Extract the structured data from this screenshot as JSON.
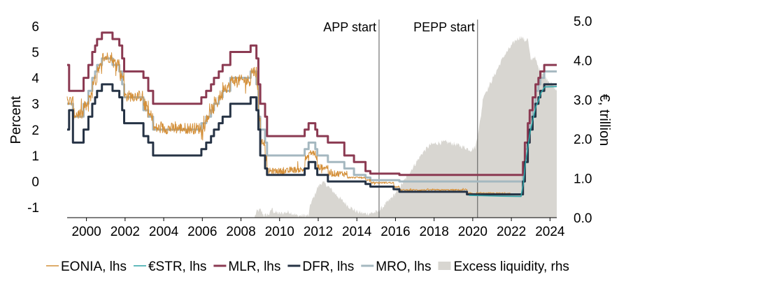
{
  "chart_data": {
    "type": "line",
    "title": "",
    "ylabel": "Percent",
    "y2label": "€, trillion",
    "xlim": [
      1999.0,
      2024.35
    ],
    "ylim": [
      -1.4,
      6.2
    ],
    "y2lim": [
      0.0,
      5.0
    ],
    "x_ticks": [
      "2000",
      "2002",
      "2004",
      "2006",
      "2008",
      "2010",
      "2012",
      "2014",
      "2016",
      "2018",
      "2020",
      "2022",
      "2024"
    ],
    "y_ticks": [
      "6",
      "5",
      "4",
      "3",
      "2",
      "1",
      "0",
      "-1"
    ],
    "y2_ticks": [
      "5.0",
      "4.0",
      "3.0",
      "2.0",
      "1.0",
      "0.0"
    ],
    "annotations": [
      {
        "label": "APP start",
        "x": 2015.15
      },
      {
        "label": "PEPP start",
        "x": 2020.25
      }
    ],
    "series": [
      {
        "name": "MLR, lhs",
        "color": "#8b3a52",
        "axis": "left",
        "step": true,
        "points": [
          [
            1999.0,
            4.5
          ],
          [
            1999.1,
            3.5
          ],
          [
            1999.3,
            3.5
          ],
          [
            1999.85,
            4.0
          ],
          [
            2000.1,
            4.5
          ],
          [
            2000.3,
            5.0
          ],
          [
            2000.45,
            5.25
          ],
          [
            2000.55,
            5.5
          ],
          [
            2000.8,
            5.75
          ],
          [
            2001.35,
            5.5
          ],
          [
            2001.7,
            5.25
          ],
          [
            2001.85,
            4.75
          ],
          [
            2001.95,
            4.25
          ],
          [
            2002.95,
            4.0
          ],
          [
            2003.2,
            3.5
          ],
          [
            2003.45,
            3.0
          ],
          [
            2005.95,
            3.25
          ],
          [
            2006.2,
            3.5
          ],
          [
            2006.45,
            3.75
          ],
          [
            2006.6,
            4.0
          ],
          [
            2006.85,
            4.25
          ],
          [
            2007.05,
            4.5
          ],
          [
            2007.45,
            5.0
          ],
          [
            2008.5,
            5.25
          ],
          [
            2008.8,
            4.75
          ],
          [
            2008.9,
            3.75
          ],
          [
            2009.0,
            3.0
          ],
          [
            2009.25,
            2.5
          ],
          [
            2009.35,
            1.75
          ],
          [
            2011.3,
            2.0
          ],
          [
            2011.5,
            2.25
          ],
          [
            2011.85,
            2.0
          ],
          [
            2011.95,
            1.75
          ],
          [
            2012.5,
            1.5
          ],
          [
            2013.35,
            1.0
          ],
          [
            2013.85,
            0.75
          ],
          [
            2014.45,
            0.4
          ],
          [
            2014.7,
            0.3
          ],
          [
            2015.9,
            0.3
          ],
          [
            2016.2,
            0.25
          ],
          [
            2022.55,
            0.25
          ],
          [
            2022.6,
            0.75
          ],
          [
            2022.7,
            1.5
          ],
          [
            2022.85,
            2.25
          ],
          [
            2022.95,
            2.75
          ],
          [
            2023.1,
            3.25
          ],
          [
            2023.25,
            3.75
          ],
          [
            2023.4,
            4.0
          ],
          [
            2023.5,
            4.25
          ],
          [
            2023.7,
            4.5
          ],
          [
            2024.35,
            4.5
          ]
        ]
      },
      {
        "name": "MRO, lhs",
        "color": "#a5b8c0",
        "axis": "left",
        "step": true,
        "points": [
          [
            1999.0,
            3.0
          ],
          [
            1999.3,
            2.5
          ],
          [
            1999.85,
            3.0
          ],
          [
            2000.1,
            3.5
          ],
          [
            2000.3,
            4.0
          ],
          [
            2000.45,
            4.25
          ],
          [
            2000.55,
            4.5
          ],
          [
            2000.8,
            4.75
          ],
          [
            2001.35,
            4.5
          ],
          [
            2001.7,
            4.25
          ],
          [
            2001.85,
            3.75
          ],
          [
            2001.95,
            3.25
          ],
          [
            2002.95,
            2.75
          ],
          [
            2003.2,
            2.5
          ],
          [
            2003.45,
            2.0
          ],
          [
            2005.95,
            2.25
          ],
          [
            2006.2,
            2.5
          ],
          [
            2006.45,
            2.75
          ],
          [
            2006.6,
            3.0
          ],
          [
            2006.85,
            3.25
          ],
          [
            2007.05,
            3.5
          ],
          [
            2007.45,
            4.0
          ],
          [
            2008.5,
            4.25
          ],
          [
            2008.8,
            3.75
          ],
          [
            2008.9,
            2.5
          ],
          [
            2009.0,
            2.0
          ],
          [
            2009.25,
            1.5
          ],
          [
            2009.35,
            1.0
          ],
          [
            2011.3,
            1.25
          ],
          [
            2011.5,
            1.5
          ],
          [
            2011.85,
            1.25
          ],
          [
            2011.95,
            1.0
          ],
          [
            2012.5,
            0.75
          ],
          [
            2013.35,
            0.5
          ],
          [
            2013.85,
            0.25
          ],
          [
            2014.45,
            0.15
          ],
          [
            2014.7,
            0.05
          ],
          [
            2016.2,
            0.0
          ],
          [
            2022.55,
            0.0
          ],
          [
            2022.6,
            0.5
          ],
          [
            2022.7,
            1.25
          ],
          [
            2022.85,
            2.0
          ],
          [
            2022.95,
            2.5
          ],
          [
            2023.1,
            3.0
          ],
          [
            2023.25,
            3.5
          ],
          [
            2023.4,
            3.75
          ],
          [
            2023.5,
            4.0
          ],
          [
            2023.7,
            4.25
          ],
          [
            2024.35,
            4.25
          ]
        ]
      },
      {
        "name": "DFR, lhs",
        "color": "#263345",
        "axis": "left",
        "step": true,
        "points": [
          [
            1999.0,
            2.0
          ],
          [
            1999.1,
            2.75
          ],
          [
            1999.3,
            1.5
          ],
          [
            1999.85,
            2.0
          ],
          [
            2000.1,
            2.5
          ],
          [
            2000.3,
            3.0
          ],
          [
            2000.45,
            3.25
          ],
          [
            2000.55,
            3.5
          ],
          [
            2000.8,
            3.75
          ],
          [
            2001.35,
            3.5
          ],
          [
            2001.7,
            3.25
          ],
          [
            2001.85,
            2.75
          ],
          [
            2001.95,
            2.25
          ],
          [
            2002.95,
            1.75
          ],
          [
            2003.2,
            1.5
          ],
          [
            2003.45,
            1.0
          ],
          [
            2005.95,
            1.25
          ],
          [
            2006.2,
            1.5
          ],
          [
            2006.45,
            1.75
          ],
          [
            2006.6,
            2.0
          ],
          [
            2006.85,
            2.25
          ],
          [
            2007.05,
            2.5
          ],
          [
            2007.45,
            3.0
          ],
          [
            2008.5,
            3.25
          ],
          [
            2008.8,
            2.75
          ],
          [
            2008.9,
            2.0
          ],
          [
            2009.0,
            1.0
          ],
          [
            2009.25,
            0.5
          ],
          [
            2009.35,
            0.25
          ],
          [
            2011.3,
            0.5
          ],
          [
            2011.5,
            0.75
          ],
          [
            2011.85,
            0.5
          ],
          [
            2011.95,
            0.25
          ],
          [
            2012.5,
            0.0
          ],
          [
            2014.45,
            -0.1
          ],
          [
            2014.7,
            -0.2
          ],
          [
            2015.9,
            -0.3
          ],
          [
            2016.2,
            -0.4
          ],
          [
            2019.7,
            -0.5
          ],
          [
            2022.55,
            -0.5
          ],
          [
            2022.6,
            0.0
          ],
          [
            2022.7,
            0.75
          ],
          [
            2022.85,
            1.5
          ],
          [
            2022.95,
            2.0
          ],
          [
            2023.1,
            2.5
          ],
          [
            2023.25,
            3.0
          ],
          [
            2023.4,
            3.25
          ],
          [
            2023.5,
            3.5
          ],
          [
            2023.7,
            3.75
          ],
          [
            2024.35,
            3.75
          ]
        ]
      },
      {
        "name": "€STR, lhs",
        "color": "#2ea3a6",
        "axis": "left",
        "step": false,
        "points": [
          [
            2019.8,
            -0.54
          ],
          [
            2020.5,
            -0.55
          ],
          [
            2021.5,
            -0.57
          ],
          [
            2022.5,
            -0.58
          ],
          [
            2022.62,
            -0.09
          ],
          [
            2022.72,
            0.66
          ],
          [
            2022.87,
            1.4
          ],
          [
            2022.97,
            1.9
          ],
          [
            2023.12,
            2.4
          ],
          [
            2023.27,
            2.9
          ],
          [
            2023.42,
            3.15
          ],
          [
            2023.52,
            3.4
          ],
          [
            2023.72,
            3.65
          ],
          [
            2024.35,
            3.66
          ]
        ]
      },
      {
        "name": "EONIA, lhs",
        "color": "#d4903a",
        "axis": "left",
        "noisy": true,
        "points": [
          [
            1999.0,
            3.1
          ],
          [
            1999.3,
            2.6
          ],
          [
            1999.85,
            2.9
          ],
          [
            2000.1,
            3.3
          ],
          [
            2000.3,
            3.9
          ],
          [
            2000.55,
            4.4
          ],
          [
            2000.8,
            4.8
          ],
          [
            2001.35,
            4.6
          ],
          [
            2001.7,
            4.1
          ],
          [
            2001.95,
            3.3
          ],
          [
            2002.95,
            2.9
          ],
          [
            2003.2,
            2.55
          ],
          [
            2003.45,
            2.05
          ],
          [
            2005.95,
            2.15
          ],
          [
            2006.2,
            2.55
          ],
          [
            2006.45,
            2.8
          ],
          [
            2006.6,
            3.05
          ],
          [
            2006.85,
            3.3
          ],
          [
            2007.05,
            3.65
          ],
          [
            2007.45,
            3.9
          ],
          [
            2008.5,
            4.25
          ],
          [
            2008.8,
            3.6
          ],
          [
            2008.9,
            2.5
          ],
          [
            2009.0,
            1.5
          ],
          [
            2009.25,
            0.9
          ],
          [
            2009.35,
            0.4
          ],
          [
            2010.5,
            0.45
          ],
          [
            2011.3,
            0.9
          ],
          [
            2011.5,
            1.1
          ],
          [
            2011.85,
            0.9
          ],
          [
            2011.95,
            0.55
          ],
          [
            2012.5,
            0.3
          ],
          [
            2013.5,
            0.15
          ],
          [
            2014.45,
            0.05
          ],
          [
            2014.7,
            -0.05
          ],
          [
            2015.9,
            -0.2
          ],
          [
            2016.2,
            -0.33
          ],
          [
            2019.7,
            -0.46
          ],
          [
            2021.95,
            -0.48
          ]
        ]
      },
      {
        "name": "Excess liquidity, rhs",
        "color": "#d8d6d1",
        "axis": "right",
        "area": true,
        "points": [
          [
            1999.0,
            0.0
          ],
          [
            2008.7,
            0.0
          ],
          [
            2008.8,
            0.15
          ],
          [
            2009.0,
            0.2
          ],
          [
            2009.2,
            0.05
          ],
          [
            2009.5,
            0.1
          ],
          [
            2009.6,
            0.25
          ],
          [
            2009.7,
            0.15
          ],
          [
            2010.0,
            0.1
          ],
          [
            2010.5,
            0.15
          ],
          [
            2010.9,
            0.05
          ],
          [
            2011.5,
            0.05
          ],
          [
            2011.6,
            0.35
          ],
          [
            2011.8,
            0.55
          ],
          [
            2011.95,
            0.75
          ],
          [
            2012.1,
            0.85
          ],
          [
            2012.2,
            0.9
          ],
          [
            2012.4,
            0.85
          ],
          [
            2012.8,
            0.65
          ],
          [
            2013.2,
            0.45
          ],
          [
            2013.6,
            0.28
          ],
          [
            2014.0,
            0.15
          ],
          [
            2014.4,
            0.1
          ],
          [
            2014.8,
            0.12
          ],
          [
            2015.1,
            0.15
          ],
          [
            2015.4,
            0.3
          ],
          [
            2015.8,
            0.5
          ],
          [
            2016.2,
            0.75
          ],
          [
            2016.6,
            1.05
          ],
          [
            2017.0,
            1.35
          ],
          [
            2017.4,
            1.65
          ],
          [
            2017.8,
            1.85
          ],
          [
            2018.2,
            1.9
          ],
          [
            2018.6,
            1.92
          ],
          [
            2019.0,
            1.88
          ],
          [
            2019.5,
            1.8
          ],
          [
            2019.9,
            1.72
          ],
          [
            2020.15,
            1.8
          ],
          [
            2020.25,
            2.1
          ],
          [
            2020.4,
            2.5
          ],
          [
            2020.55,
            3.1
          ],
          [
            2020.8,
            3.3
          ],
          [
            2021.0,
            3.5
          ],
          [
            2021.3,
            3.8
          ],
          [
            2021.6,
            4.1
          ],
          [
            2021.9,
            4.3
          ],
          [
            2022.2,
            4.5
          ],
          [
            2022.5,
            4.6
          ],
          [
            2022.7,
            4.5
          ],
          [
            2022.85,
            4.55
          ],
          [
            2023.0,
            4.0
          ],
          [
            2023.2,
            4.1
          ],
          [
            2023.4,
            3.8
          ],
          [
            2023.6,
            3.7
          ],
          [
            2023.8,
            3.55
          ],
          [
            2024.0,
            3.45
          ],
          [
            2024.3,
            3.25
          ],
          [
            2024.35,
            3.25
          ],
          [
            2024.35,
            0.0
          ]
        ]
      }
    ],
    "legend": [
      {
        "label": "EONIA, lhs",
        "color": "#d4903a",
        "style": "line-thin"
      },
      {
        "label": "€STR, lhs",
        "color": "#2ea3a6",
        "style": "line-thin"
      },
      {
        "label": "MLR, lhs",
        "color": "#8b3a52",
        "style": "line"
      },
      {
        "label": "DFR, lhs",
        "color": "#263345",
        "style": "line"
      },
      {
        "label": "MRO, lhs",
        "color": "#a5b8c0",
        "style": "line"
      },
      {
        "label": "Excess liquidity, rhs",
        "color": "#d8d6d1",
        "style": "box"
      }
    ]
  }
}
